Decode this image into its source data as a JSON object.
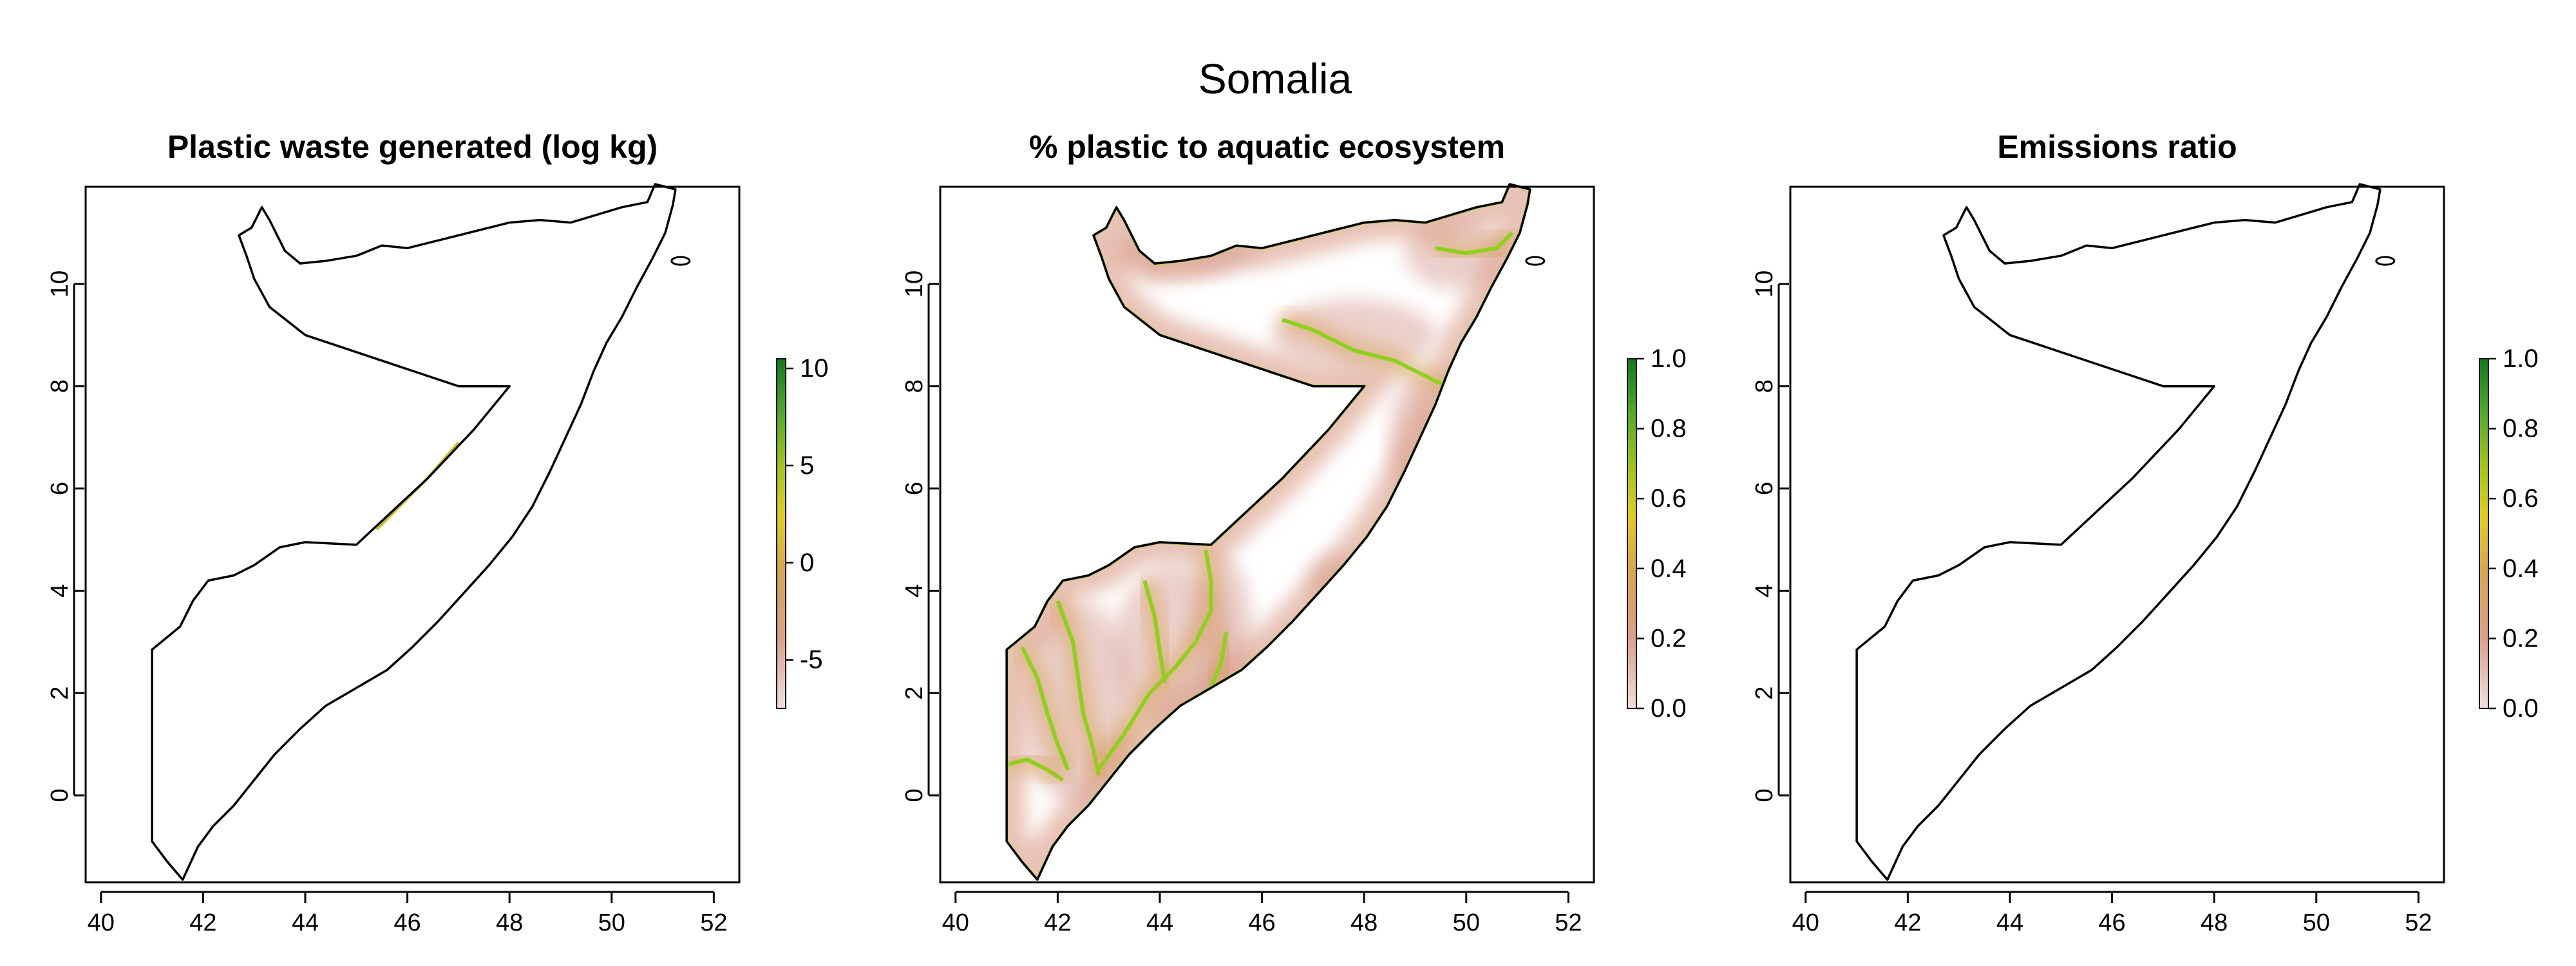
{
  "figure_title": "Somalia",
  "panels": [
    {
      "title": "Plastic waste generated (log kg)",
      "colorbar_ticks": [
        "10",
        "5",
        "0",
        "-5"
      ],
      "x_ticks": [
        "40",
        "42",
        "44",
        "46",
        "48",
        "50",
        "52"
      ],
      "y_ticks": [
        "0",
        "2",
        "4",
        "6",
        "8",
        "10"
      ]
    },
    {
      "title": "% plastic to aquatic ecosystem",
      "colorbar_ticks": [
        "1.0",
        "0.8",
        "0.6",
        "0.4",
        "0.2",
        "0.0"
      ],
      "x_ticks": [
        "40",
        "42",
        "44",
        "46",
        "48",
        "50",
        "52"
      ],
      "y_ticks": [
        "0",
        "2",
        "4",
        "6",
        "8",
        "10"
      ]
    },
    {
      "title": "Emissions ratio",
      "colorbar_ticks": [
        "1.0",
        "0.8",
        "0.6",
        "0.4",
        "0.2",
        "0.0"
      ],
      "x_ticks": [
        "40",
        "42",
        "44",
        "46",
        "48",
        "50",
        "52"
      ],
      "y_ticks": [
        "0",
        "2",
        "4",
        "6",
        "8",
        "10"
      ]
    }
  ],
  "chart_data": [
    {
      "type": "heatmap",
      "title": "Plastic waste generated (log kg)",
      "xlim": [
        39.7,
        52.5
      ],
      "ylim": [
        -1.7,
        11.9
      ],
      "colorbar": {
        "ticks": [
          10,
          5,
          0,
          -5
        ],
        "range": [
          -7.5,
          10.5
        ]
      },
      "colormap": [
        "#f2dede",
        "#d9a08a",
        "#d4a84b",
        "#e3cd1a",
        "#9ec418",
        "#4fa82a",
        "#0f7a1f"
      ],
      "grid": false
    },
    {
      "type": "heatmap",
      "title": "% plastic to aquatic ecosystem",
      "xlim": [
        39.7,
        52.5
      ],
      "ylim": [
        -1.7,
        11.9
      ],
      "colorbar": {
        "ticks": [
          1.0,
          0.8,
          0.6,
          0.4,
          0.2,
          0.0
        ],
        "range": [
          0,
          1
        ]
      },
      "colormap": [
        "#f2dede",
        "#d9a08a",
        "#d4a84b",
        "#e3cd1a",
        "#9ec418",
        "#4fa82a",
        "#0f7a1f"
      ],
      "grid": false
    },
    {
      "type": "heatmap",
      "title": "Emissions ratio",
      "xlim": [
        39.7,
        52.5
      ],
      "ylim": [
        -1.7,
        11.9
      ],
      "colorbar": {
        "ticks": [
          1.0,
          0.8,
          0.6,
          0.4,
          0.2,
          0.0
        ],
        "range": [
          0,
          1
        ]
      },
      "colormap": [
        "#f2dede",
        "#d9a08a",
        "#d4a84b",
        "#e3cd1a",
        "#9ec418",
        "#4fa82a",
        "#0f7a1f"
      ],
      "grid": false
    }
  ]
}
